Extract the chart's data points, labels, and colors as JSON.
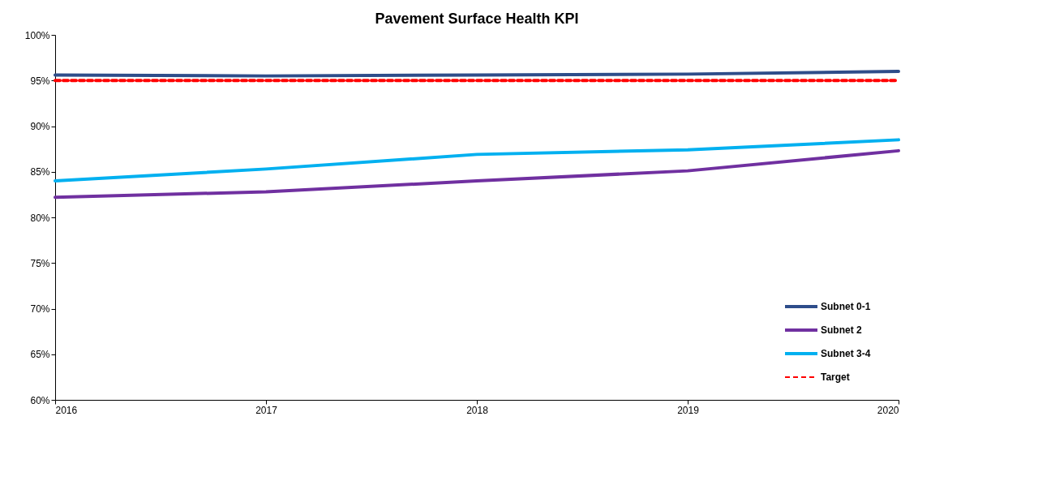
{
  "chart_data": {
    "type": "line",
    "title": "Pavement Surface Health KPI",
    "x": [
      2016,
      2017,
      2018,
      2019,
      2020
    ],
    "xlim": [
      2016,
      2020
    ],
    "xticks": [
      2016,
      2017,
      2018,
      2019,
      2020
    ],
    "ylim": [
      60,
      100
    ],
    "yticks": [
      {
        "value": 60,
        "label": "60%"
      },
      {
        "value": 65,
        "label": "65%"
      },
      {
        "value": 70,
        "label": "70%"
      },
      {
        "value": 75,
        "label": "75%"
      },
      {
        "value": 80,
        "label": "80%"
      },
      {
        "value": 85,
        "label": "85%"
      },
      {
        "value": 90,
        "label": "90%"
      },
      {
        "value": 95,
        "label": "95%"
      },
      {
        "value": 100,
        "label": "100%"
      }
    ],
    "series": [
      {
        "name": "Subnet 0-1",
        "color": "#2e4d8a",
        "values": [
          95.6,
          95.5,
          95.6,
          95.7,
          96.0
        ]
      },
      {
        "name": "Subnet 2",
        "color": "#7030a0",
        "values": [
          82.2,
          82.8,
          84.0,
          85.1,
          87.3
        ]
      },
      {
        "name": "Subnet 3-4",
        "color": "#00b0f0",
        "values": [
          84.0,
          85.3,
          86.9,
          87.4,
          88.5
        ]
      },
      {
        "name": "Target",
        "color": "#ff0000",
        "line_style": "dashed",
        "values": [
          95,
          95,
          95,
          95,
          95
        ]
      }
    ],
    "grid": false,
    "legend": "bottom right",
    "marker": "none"
  }
}
